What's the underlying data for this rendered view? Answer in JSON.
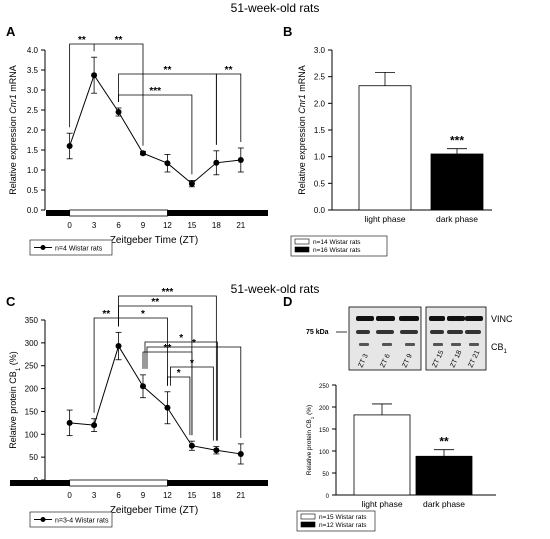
{
  "headings": {
    "top": "51-week-old rats",
    "middle": "51-week-old rats"
  },
  "chart_data": [
    {
      "panel": "A",
      "type": "line",
      "x": [
        0,
        3,
        6,
        9,
        12,
        15,
        18,
        21
      ],
      "x_ticks": [
        "0",
        "3",
        "6",
        "9",
        "12",
        "15",
        "18",
        "21"
      ],
      "series": [
        {
          "name": "n=4 Wistar rats",
          "values": [
            1.6,
            3.37,
            2.45,
            1.42,
            1.17,
            0.66,
            1.18,
            1.25
          ],
          "errors": [
            0.32,
            0.45,
            0.1,
            0.04,
            0.22,
            0.08,
            0.3,
            0.3
          ]
        }
      ],
      "xlabel": "Zeitgeber Time (ZT)",
      "ylabel_parts": [
        "Relative expression ",
        "Cnr1",
        " mRNA"
      ],
      "ylim": [
        0,
        4.0
      ],
      "y_ticks": [
        "0.0",
        "0.5",
        "1.0",
        "1.5",
        "2.0",
        "2.5",
        "3.0",
        "3.5",
        "4.0"
      ],
      "light_dark_bar": "light ZT0-12, dark ZT12-24",
      "significance": [
        {
          "between": [
            0,
            3
          ],
          "label": "**"
        },
        {
          "between": [
            3,
            9
          ],
          "label": "**"
        },
        {
          "between": [
            6,
            15
          ],
          "label": "***"
        },
        {
          "between": [
            6,
            18
          ],
          "label": "**"
        },
        {
          "between": [
            18,
            21
          ],
          "label": "**"
        }
      ],
      "legend_position": "bottom-left"
    },
    {
      "panel": "B",
      "type": "bar",
      "categories": [
        "light phase",
        "dark phase"
      ],
      "values": [
        2.33,
        1.05
      ],
      "errors": [
        0.25,
        0.1
      ],
      "colors": [
        "#ffffff",
        "#000000"
      ],
      "ylabel_parts": [
        "Relative expression ",
        "Cnr1",
        " mRNA"
      ],
      "ylim": [
        0,
        3.0
      ],
      "y_ticks": [
        "0.0",
        "0.5",
        "1.0",
        "1.5",
        "2.0",
        "2.5",
        "3.0"
      ],
      "annotation": "***",
      "legend": [
        "n=14 Wistar rats",
        "n=16 Wistar rats"
      ]
    },
    {
      "panel": "C",
      "type": "line",
      "x": [
        0,
        3,
        6,
        9,
        12,
        15,
        18,
        21
      ],
      "x_ticks": [
        "0",
        "3",
        "6",
        "9",
        "12",
        "15",
        "18",
        "21"
      ],
      "series": [
        {
          "name": "n=3-4 Wistar rats",
          "values": [
            125,
            120,
            293,
            205,
            158,
            75,
            65,
            57
          ],
          "errors": [
            28,
            14,
            30,
            25,
            35,
            10,
            8,
            22
          ]
        }
      ],
      "xlabel": "Zeitgeber Time (ZT)",
      "ylabel_parts": [
        "Relative protein CB",
        "1",
        " (%)"
      ],
      "ylim": [
        0,
        350
      ],
      "y_ticks": [
        "0",
        "50",
        "100",
        "150",
        "200",
        "250",
        "300",
        "350"
      ],
      "light_dark_bar": "light ZT0-12, dark ZT12-24",
      "significance": [
        {
          "between": [
            3,
            6
          ],
          "label": "**"
        },
        {
          "between": [
            6,
            12
          ],
          "label": "*"
        },
        {
          "between": [
            6,
            15
          ],
          "label": "**"
        },
        {
          "between": [
            6,
            18
          ],
          "label": "***"
        },
        {
          "between": [
            9,
            15
          ],
          "label": "**"
        },
        {
          "between": [
            9,
            18
          ],
          "label": "*"
        },
        {
          "between": [
            9,
            21
          ],
          "label": "*"
        },
        {
          "between": [
            12,
            15
          ],
          "label": "*"
        },
        {
          "between": [
            12,
            18
          ],
          "label": "*"
        }
      ],
      "legend_position": "bottom-left"
    },
    {
      "panel": "D",
      "type": "bar",
      "categories": [
        "light phase",
        "dark phase"
      ],
      "values": [
        182,
        88
      ],
      "errors": [
        25,
        15
      ],
      "colors": [
        "#ffffff",
        "#000000"
      ],
      "ylabel_parts": [
        "Relative protein CB",
        "1",
        " (%)"
      ],
      "ylim": [
        0,
        250
      ],
      "y_ticks": [
        "0",
        "50",
        "100",
        "150",
        "200",
        "250"
      ],
      "annotation": "**",
      "legend": [
        "n=15 Wistar rats",
        "n=12 Wistar rats"
      ]
    }
  ],
  "blot": {
    "marker": "75 kDa",
    "band_labels": {
      "top": "VINC",
      "bottom_main": "CB",
      "bottom_sub": "1"
    },
    "lanes_left": [
      "ZT 3",
      "ZT 6",
      "ZT 9"
    ],
    "lanes_right": [
      "ZT 15",
      "ZT 18",
      "ZT 21"
    ]
  }
}
